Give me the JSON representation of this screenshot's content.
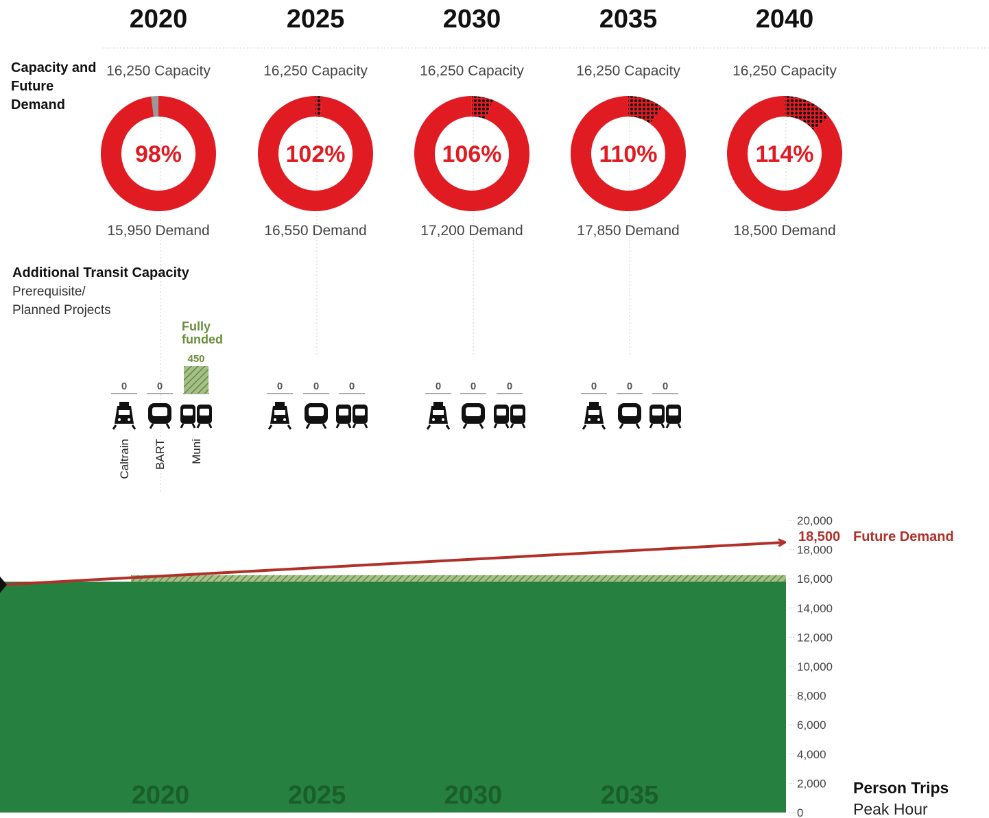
{
  "chart_data": [
    {
      "type": "donut",
      "row_label": [
        "Capacity and",
        "Future",
        "Demand"
      ],
      "years": [
        "2020",
        "2025",
        "2030",
        "2035",
        "2040"
      ],
      "capacity_labels": [
        "16,250 Capacity",
        "16,250 Capacity",
        "16,250 Capacity",
        "16,250 Capacity",
        "16,250 Capacity"
      ],
      "demand_labels": [
        "15,950 Demand",
        "16,550 Demand",
        "17,200 Demand",
        "17,850 Demand",
        "18,500 Demand"
      ],
      "percent_labels": [
        "98%",
        "102%",
        "106%",
        "110%",
        "114%"
      ],
      "percent_values": [
        98,
        102,
        106,
        110,
        114
      ],
      "colors": {
        "ring": "#e11b22",
        "unused": "#999999",
        "overflow": "#b01218"
      }
    },
    {
      "type": "bar",
      "title": "Additional Transit Capacity",
      "subtitle": [
        "Prerequisite/",
        "Planned Projects"
      ],
      "modes": [
        "Caltrain",
        "BART",
        "Muni"
      ],
      "groups": [
        {
          "year": "2020",
          "values": [
            0,
            0,
            450
          ],
          "value_labels": [
            "0",
            "0",
            "450"
          ]
        },
        {
          "year": "2025",
          "values": [
            0,
            0,
            0
          ],
          "value_labels": [
            "0",
            "0",
            "0"
          ]
        },
        {
          "year": "2030",
          "values": [
            0,
            0,
            0
          ],
          "value_labels": [
            "0",
            "0",
            "0"
          ]
        },
        {
          "year": "2035",
          "values": [
            0,
            0,
            0
          ],
          "value_labels": [
            "0",
            "0",
            "0"
          ]
        }
      ],
      "annotation": [
        "Fully",
        "funded"
      ],
      "colors": {
        "funded": "#6a8f3a"
      }
    },
    {
      "type": "area",
      "x_labels": [
        "2020",
        "2025",
        "2030",
        "2035"
      ],
      "x_range": [
        2016,
        2040
      ],
      "yticks": [
        0,
        2000,
        4000,
        6000,
        8000,
        10000,
        12000,
        14000,
        16000,
        18000,
        20000
      ],
      "ytick_labels": [
        "0",
        "2,000",
        "4,000",
        "6,000",
        "8,000",
        "10,000",
        "12,000",
        "14,000",
        "16,000",
        "18,000",
        "20,000"
      ],
      "ylim": [
        0,
        20000
      ],
      "existing_capacity": 15800,
      "added_capacity": {
        "from_year": 2020,
        "value": 450
      },
      "demand_line": {
        "start": {
          "x": 2016,
          "y": 15600
        },
        "end": {
          "x": 2040,
          "y": 18500
        }
      },
      "demand_label_value": "18,500",
      "demand_label_text": "Future Demand",
      "ylabel": [
        "Person Trips",
        "Peak Hour"
      ],
      "colors": {
        "area": "#268040",
        "hatch": "#8aa86a",
        "demand": "#b0302a"
      }
    }
  ]
}
